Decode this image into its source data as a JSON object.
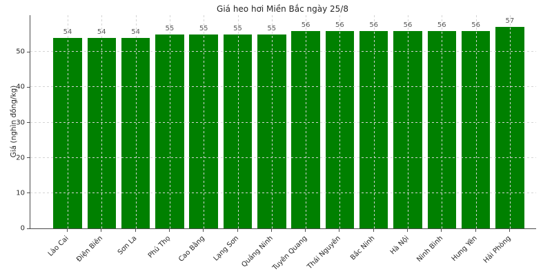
{
  "chart_data": {
    "type": "bar",
    "title": "Giá heo hơi Miền Bắc ngày 25/8",
    "xlabel": "",
    "ylabel": "Giá (nghìn đồng/kg)",
    "categories": [
      "Lào Cai",
      "Điện Biên",
      "Sơn La",
      "Phú Thọ",
      "Cao Bằng",
      "Lạng Sơn",
      "Quảng Ninh",
      "Tuyên Quang",
      "Thái Nguyên",
      "Bắc Ninh",
      "Hà Nội",
      "Ninh Bình",
      "Hưng Yên",
      "Hải Phòng"
    ],
    "values": [
      54,
      54,
      54,
      55,
      55,
      55,
      55,
      56,
      56,
      56,
      56,
      56,
      56,
      57
    ],
    "value_labels": [
      "54",
      "54",
      "54",
      "55",
      "55",
      "55",
      "55",
      "56",
      "56",
      "56",
      "56",
      "56",
      "56",
      "57"
    ],
    "yticks": [
      0,
      10,
      20,
      30,
      40,
      50
    ],
    "ylim": [
      0,
      60.4
    ],
    "grid": "dashed, both axes, drawn over bars",
    "legend": "none",
    "colors": {
      "bar": "#008000",
      "grid": "#d4d4d4",
      "axis": "#4a4a4a",
      "title_text": "#262626",
      "tick_text": "#262626",
      "value_label_text": "#595959",
      "background": "#ffffff"
    }
  }
}
